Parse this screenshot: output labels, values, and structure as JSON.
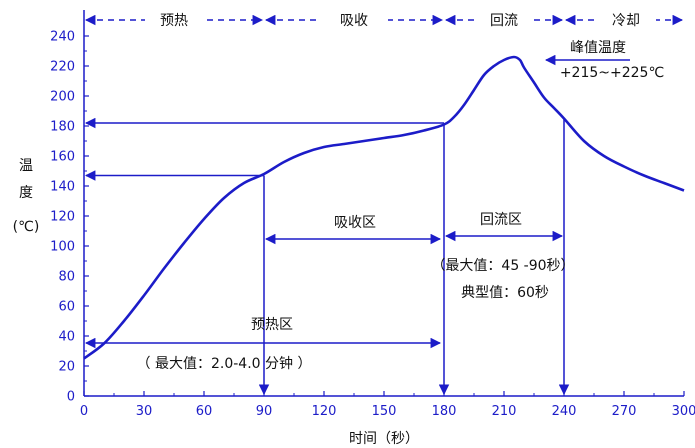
{
  "chart_data": {
    "type": "line",
    "xlabel": "时间（秒）",
    "ylabel": [
      "温",
      "度",
      "(℃)"
    ],
    "xlim": [
      0,
      300
    ],
    "ylim": [
      0,
      250
    ],
    "x_ticks": [
      "0",
      "30",
      "60",
      "90",
      "120",
      "150",
      "180",
      "210",
      "240",
      "270",
      "300"
    ],
    "y_ticks": [
      "0",
      "20",
      "40",
      "60",
      "80",
      "100",
      "120",
      "140",
      "160",
      "180",
      "200",
      "220",
      "240"
    ],
    "grid": false,
    "line_color": "#1c1cc8",
    "series": [
      {
        "x": [
          0,
          10,
          20,
          30,
          40,
          50,
          60,
          70,
          80,
          90,
          100,
          110,
          120,
          130,
          140,
          150,
          160,
          170,
          180,
          185,
          190,
          195,
          200,
          205,
          210,
          215,
          218,
          220,
          225,
          230,
          235,
          240,
          250,
          260,
          270,
          280,
          290,
          300
        ],
        "y": [
          25,
          35,
          50,
          67,
          85,
          102,
          118,
          132,
          142,
          148,
          156,
          162,
          166,
          168,
          170,
          172,
          174,
          177,
          181,
          186,
          194,
          204,
          214,
          220,
          224,
          226,
          224,
          219,
          209,
          199,
          192,
          185,
          170,
          160,
          153,
          147,
          142,
          137
        ]
      }
    ],
    "phases": [
      "预热",
      "吸收",
      "回流",
      "冷却"
    ],
    "annotations": {
      "peak_title": "峰值温度",
      "peak_range": "+215~+225℃",
      "soak_zone": "吸收区",
      "reflow_zone": "回流区",
      "reflow_max": "（最大值：45 -90秒）",
      "reflow_typical": "典型值：60秒",
      "preheat_zone": "预热区",
      "preheat_max": "（ 最大值：2.0-4.0 分钟 ）"
    },
    "reference": {
      "preheat_end_temp": 147,
      "reflow_temp": 182,
      "preheat_end_time": 90,
      "reflow_start_time": 180,
      "reflow_end_time": 240
    }
  }
}
